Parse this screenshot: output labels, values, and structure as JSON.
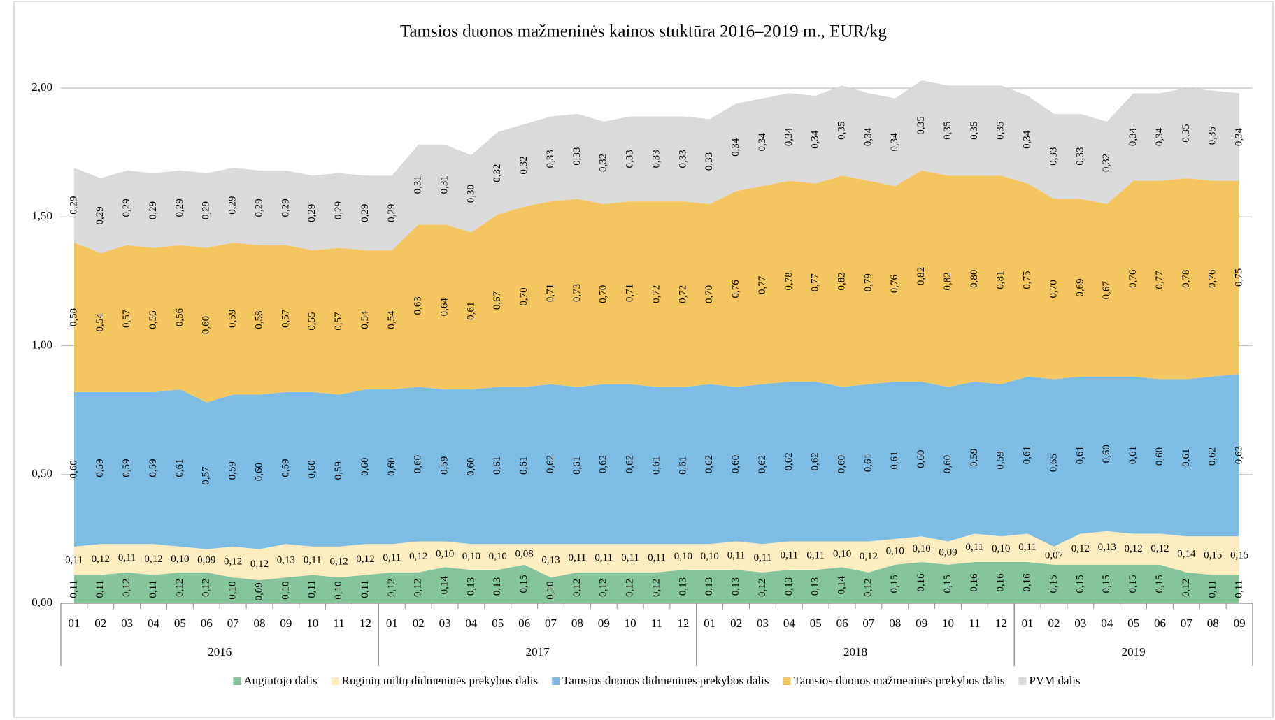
{
  "chart_data": {
    "type": "stacked_area",
    "title": "Tamsios duonos mažmeninės kainos stuktūra 2016–2019  m., EUR/kg",
    "categories": [
      "01",
      "02",
      "03",
      "04",
      "05",
      "06",
      "07",
      "08",
      "09",
      "10",
      "11",
      "12",
      "01",
      "02",
      "03",
      "04",
      "05",
      "06",
      "07",
      "08",
      "09",
      "10",
      "11",
      "12",
      "01",
      "02",
      "03",
      "04",
      "05",
      "06",
      "07",
      "08",
      "09",
      "10",
      "11",
      "12",
      "01",
      "02",
      "03",
      "04",
      "05",
      "06",
      "07",
      "08",
      "09"
    ],
    "groups": [
      "2016",
      "2017",
      "2018",
      "2019"
    ],
    "ylim": [
      0,
      2
    ],
    "yticks": [
      {
        "value": 0,
        "label": "0,00"
      },
      {
        "value": 0.5,
        "label": "0,50"
      },
      {
        "value": 1,
        "label": "1,00"
      },
      {
        "value": 1.5,
        "label": "1,50"
      },
      {
        "value": 2,
        "label": "2,00"
      }
    ],
    "grid": true,
    "legend": "bottom",
    "series": [
      {
        "name": "Augintojo dalis",
        "color": "#86c59c",
        "values": [
          0.11,
          0.11,
          0.12,
          0.11,
          0.12,
          0.12,
          0.1,
          0.09,
          0.1,
          0.11,
          0.1,
          0.11,
          0.12,
          0.12,
          0.14,
          0.13,
          0.13,
          0.15,
          0.1,
          0.12,
          0.12,
          0.12,
          0.12,
          0.13,
          0.13,
          0.13,
          0.12,
          0.13,
          0.13,
          0.14,
          0.12,
          0.15,
          0.16,
          0.15,
          0.16,
          0.16,
          0.16,
          0.15,
          0.15,
          0.15,
          0.15,
          0.15,
          0.12,
          0.11,
          0.11
        ],
        "value_labels": [
          "0,11",
          "0,11",
          "0,12",
          "0,11",
          "0,12",
          "0,12",
          "0,10",
          "0,09",
          "0,10",
          "0,11",
          "0,10",
          "0,11",
          "0,12",
          "0,12",
          "0,14",
          "0,13",
          "0,13",
          "0,15",
          "0,10",
          "0,12",
          "0,12",
          "0,12",
          "0,12",
          "0,13",
          "0,13",
          "0,13",
          "0,12",
          "0,13",
          "0,13",
          "0,14",
          "0,12",
          "0,15",
          "0,16",
          "0,15",
          "0,16",
          "0,16",
          "0,16",
          "0,15",
          "0,15",
          "0,15",
          "0,15",
          "0,15",
          "0,12",
          "0,11",
          "0,11"
        ]
      },
      {
        "name": "Ruginių miltų didmeninės  prekybos dalis",
        "color": "#fdedc0",
        "values": [
          0.11,
          0.12,
          0.11,
          0.12,
          0.1,
          0.09,
          0.12,
          0.12,
          0.13,
          0.11,
          0.12,
          0.12,
          0.11,
          0.12,
          0.1,
          0.1,
          0.1,
          0.08,
          0.13,
          0.11,
          0.11,
          0.11,
          0.11,
          0.1,
          0.1,
          0.11,
          0.11,
          0.11,
          0.11,
          0.1,
          0.12,
          0.1,
          0.1,
          0.09,
          0.11,
          0.1,
          0.11,
          0.07,
          0.12,
          0.13,
          0.12,
          0.12,
          0.14,
          0.15,
          0.15
        ],
        "value_labels": [
          "0,11",
          "0,12",
          "0,11",
          "0,12",
          "0,10",
          "0,09",
          "0,12",
          "0,12",
          "0,13",
          "0,11",
          "0,12",
          "0,12",
          "0,11",
          "0,12",
          "0,10",
          "0,10",
          "0,10",
          "0,08",
          "0,13",
          "0,11",
          "0,11",
          "0,11",
          "0,11",
          "0,10",
          "0,10",
          "0,11",
          "0,11",
          "0,11",
          "0,11",
          "0,10",
          "0,12",
          "0,10",
          "0,10",
          "0,09",
          "0,11",
          "0,10",
          "0,11",
          "0,07",
          "0,12",
          "0,13",
          "0,12",
          "0,12",
          "0,14",
          "0,15",
          "0,15"
        ]
      },
      {
        "name": "Tamsios duonos didmeninės prekybos dalis",
        "color": "#7dbde3",
        "values": [
          0.6,
          0.59,
          0.59,
          0.59,
          0.61,
          0.57,
          0.59,
          0.6,
          0.59,
          0.6,
          0.59,
          0.6,
          0.6,
          0.6,
          0.59,
          0.6,
          0.61,
          0.61,
          0.62,
          0.61,
          0.62,
          0.62,
          0.61,
          0.61,
          0.62,
          0.6,
          0.62,
          0.62,
          0.62,
          0.6,
          0.61,
          0.61,
          0.6,
          0.6,
          0.59,
          0.59,
          0.61,
          0.65,
          0.61,
          0.6,
          0.61,
          0.6,
          0.61,
          0.62,
          0.63
        ],
        "value_labels": [
          "0,60",
          "0,59",
          "0,59",
          "0,59",
          "0,61",
          "0,57",
          "0,59",
          "0,60",
          "0,59",
          "0,60",
          "0,59",
          "0,60",
          "0,60",
          "0,60",
          "0,59",
          "0,60",
          "0,61",
          "0,61",
          "0,62",
          "0,61",
          "0,62",
          "0,62",
          "0,61",
          "0,61",
          "0,62",
          "0,60",
          "0,62",
          "0,62",
          "0,62",
          "0,60",
          "0,61",
          "0,61",
          "0,60",
          "0,60",
          "0,59",
          "0,59",
          "0,61",
          "0,65",
          "0,61",
          "0,60",
          "0,61",
          "0,60",
          "0,61",
          "0,62",
          "0,63"
        ]
      },
      {
        "name": "Tamsios duonos mažmeninės prekybos dalis",
        "color": "#f4c660",
        "values": [
          0.58,
          0.54,
          0.57,
          0.56,
          0.56,
          0.6,
          0.59,
          0.58,
          0.57,
          0.55,
          0.57,
          0.54,
          0.54,
          0.63,
          0.64,
          0.61,
          0.67,
          0.7,
          0.71,
          0.73,
          0.7,
          0.71,
          0.72,
          0.72,
          0.7,
          0.76,
          0.77,
          0.78,
          0.77,
          0.82,
          0.79,
          0.76,
          0.82,
          0.82,
          0.8,
          0.81,
          0.75,
          0.7,
          0.69,
          0.67,
          0.76,
          0.77,
          0.78,
          0.76,
          0.75
        ],
        "value_labels": [
          "0,58",
          "0,54",
          "0,57",
          "0,56",
          "0,56",
          "0,60",
          "0,59",
          "0,58",
          "0,57",
          "0,55",
          "0,57",
          "0,54",
          "0,54",
          "0,63",
          "0,64",
          "0,61",
          "0,67",
          "0,70",
          "0,71",
          "0,73",
          "0,70",
          "0,71",
          "0,72",
          "0,72",
          "0,70",
          "0,76",
          "0,77",
          "0,78",
          "0,77",
          "0,82",
          "0,79",
          "0,76",
          "0,82",
          "0,82",
          "0,80",
          "0,81",
          "0,75",
          "0,70",
          "0,69",
          "0,67",
          "0,76",
          "0,77",
          "0,78",
          "0,76",
          "0,75"
        ]
      },
      {
        "name": "PVM dalis",
        "color": "#dadada",
        "values": [
          0.29,
          0.29,
          0.29,
          0.29,
          0.29,
          0.29,
          0.29,
          0.29,
          0.29,
          0.29,
          0.29,
          0.29,
          0.29,
          0.31,
          0.31,
          0.3,
          0.32,
          0.32,
          0.33,
          0.33,
          0.32,
          0.33,
          0.33,
          0.33,
          0.33,
          0.34,
          0.34,
          0.34,
          0.34,
          0.35,
          0.34,
          0.34,
          0.35,
          0.35,
          0.35,
          0.35,
          0.34,
          0.33,
          0.33,
          0.32,
          0.34,
          0.34,
          0.35,
          0.35,
          0.34
        ],
        "value_labels": [
          "0,29",
          "0,29",
          "0,29",
          "0,29",
          "0,29",
          "0,29",
          "0,29",
          "0,29",
          "0,29",
          "0,29",
          "0,29",
          "0,29",
          "0,29",
          "0,31",
          "0,31",
          "0,30",
          "0,32",
          "0,32",
          "0,33",
          "0,33",
          "0,32",
          "0,33",
          "0,33",
          "0,33",
          "0,33",
          "0,34",
          "0,34",
          "0,34",
          "0,34",
          "0,35",
          "0,34",
          "0,34",
          "0,35",
          "0,35",
          "0,35",
          "0,35",
          "0,34",
          "0,33",
          "0,33",
          "0,32",
          "0,34",
          "0,34",
          "0,35",
          "0,35",
          "0,34"
        ]
      }
    ]
  }
}
